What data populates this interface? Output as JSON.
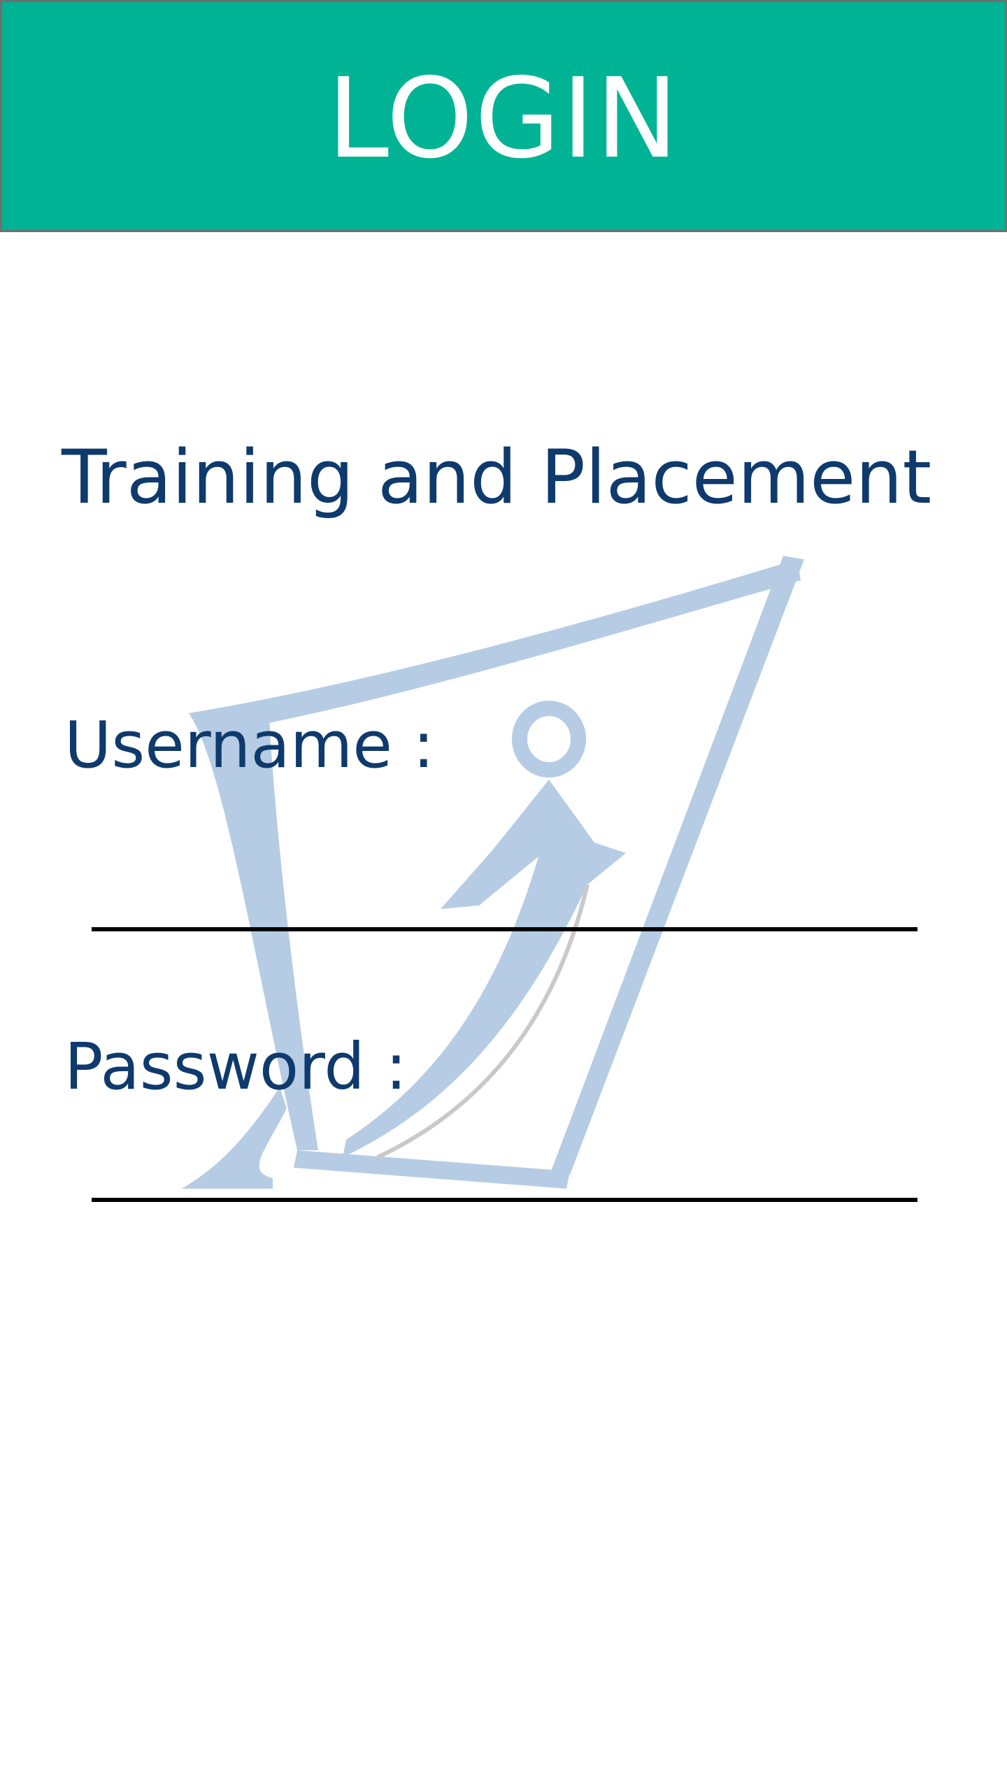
{
  "header": {
    "title": "LOGIN"
  },
  "app": {
    "title": "Training and Placement",
    "logo_icon": "training-placement-logo-icon"
  },
  "form": {
    "username": {
      "label": "Username :",
      "value": "",
      "placeholder": ""
    },
    "password": {
      "label": "Password :",
      "value": "",
      "placeholder": ""
    }
  },
  "colors": {
    "header_bg": "#00b395",
    "header_text": "#ffffff",
    "label_text": "#0e3a6d",
    "logo": "#b5cce4",
    "underline": "#000000"
  }
}
